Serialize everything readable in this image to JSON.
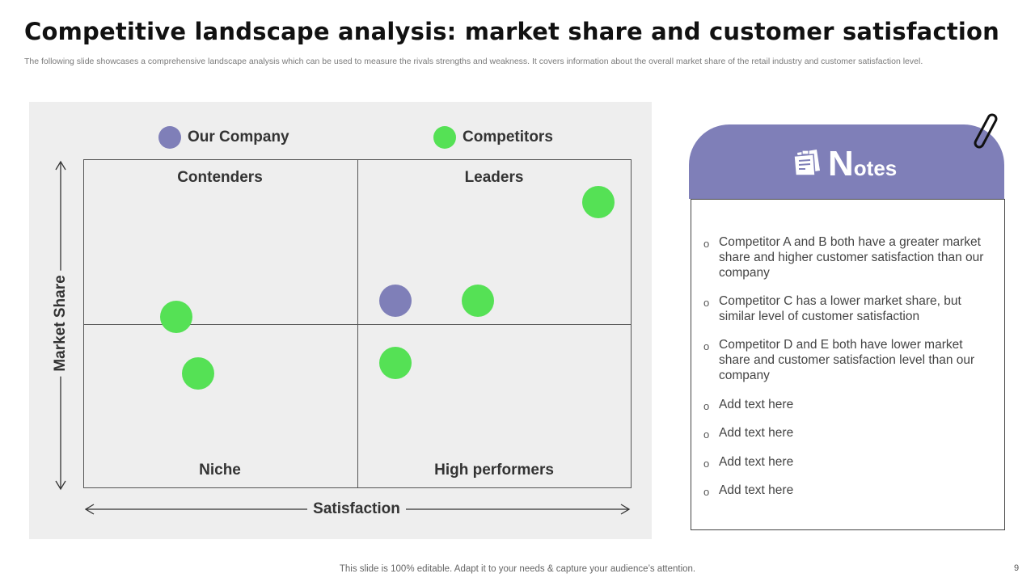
{
  "slide": {
    "title": "Competitive landscape analysis: market share and customer satisfaction",
    "subtitle": "The following slide showcases a comprehensive landscape analysis which can be used to measure the rivals strengths and weakness. It covers information about the overall market share of the retail industry and customer satisfaction level.",
    "footer": "This slide is 100% editable. Adapt it to your needs & capture your audience’s attention.",
    "page_number": "9"
  },
  "legend": [
    {
      "label": "Our Company",
      "color": "#7f7fb8"
    },
    {
      "label": "Competitors",
      "color": "#55e155"
    }
  ],
  "quadrants": {
    "top_left": "Contenders",
    "top_right": "Leaders",
    "bottom_left": "Niche",
    "bottom_right": "High performers"
  },
  "axes": {
    "x_label": "Satisfaction",
    "y_label": "Market Share"
  },
  "chart_data": {
    "type": "scatter",
    "xlabel": "Satisfaction",
    "ylabel": "Market Share",
    "xlim": [
      0,
      1
    ],
    "ylim": [
      0,
      1
    ],
    "series": [
      {
        "name": "Our Company",
        "color": "#7f7fb8",
        "points": [
          {
            "x": 0.57,
            "y": 0.57
          }
        ]
      },
      {
        "name": "Competitors",
        "color": "#55e155",
        "points": [
          {
            "x": 0.94,
            "y": 0.87
          },
          {
            "x": 0.72,
            "y": 0.57
          },
          {
            "x": 0.17,
            "y": 0.52
          },
          {
            "x": 0.21,
            "y": 0.35
          },
          {
            "x": 0.57,
            "y": 0.38
          }
        ]
      }
    ]
  },
  "notes": {
    "title_first_letter": "N",
    "title_rest": "otes",
    "bullet_symbol": "o",
    "items": [
      "Competitor A and B both have a greater market share and higher customer satisfaction than our company",
      "Competitor C has a lower market share, but similar level of customer satisfaction",
      "Competitor D and E both have lower market share and customer satisfaction level than our company",
      "Add text here",
      "Add text here",
      "Add text here",
      "Add text here"
    ]
  }
}
